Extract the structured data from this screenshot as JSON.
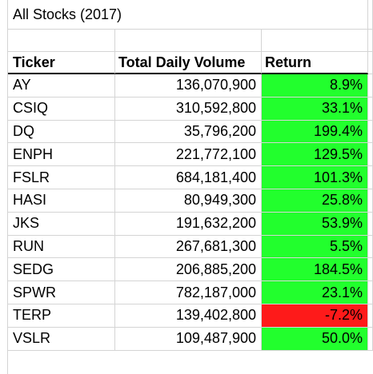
{
  "title": "All Stocks (2017)",
  "headers": [
    "Ticker",
    "Total Daily Volume",
    "Return"
  ],
  "colors": {
    "positive": "#22ff2d",
    "negative": "#fe1a1a"
  },
  "rows": [
    {
      "ticker": "AY",
      "volume": "136,070,900",
      "return": "8.9%",
      "status": "positive"
    },
    {
      "ticker": "CSIQ",
      "volume": "310,592,800",
      "return": "33.1%",
      "status": "positive"
    },
    {
      "ticker": "DQ",
      "volume": "35,796,200",
      "return": "199.4%",
      "status": "positive"
    },
    {
      "ticker": "ENPH",
      "volume": "221,772,100",
      "return": "129.5%",
      "status": "positive"
    },
    {
      "ticker": "FSLR",
      "volume": "684,181,400",
      "return": "101.3%",
      "status": "positive"
    },
    {
      "ticker": "HASI",
      "volume": "80,949,300",
      "return": "25.8%",
      "status": "positive"
    },
    {
      "ticker": "JKS",
      "volume": "191,632,200",
      "return": "53.9%",
      "status": "positive"
    },
    {
      "ticker": "RUN",
      "volume": "267,681,300",
      "return": "5.5%",
      "status": "positive"
    },
    {
      "ticker": "SEDG",
      "volume": "206,885,200",
      "return": "184.5%",
      "status": "positive"
    },
    {
      "ticker": "SPWR",
      "volume": "782,187,000",
      "return": "23.1%",
      "status": "positive"
    },
    {
      "ticker": "TERP",
      "volume": "139,402,800",
      "return": "-7.2%",
      "status": "negative"
    },
    {
      "ticker": "VSLR",
      "volume": "109,487,900",
      "return": "50.0%",
      "status": "positive"
    }
  ]
}
